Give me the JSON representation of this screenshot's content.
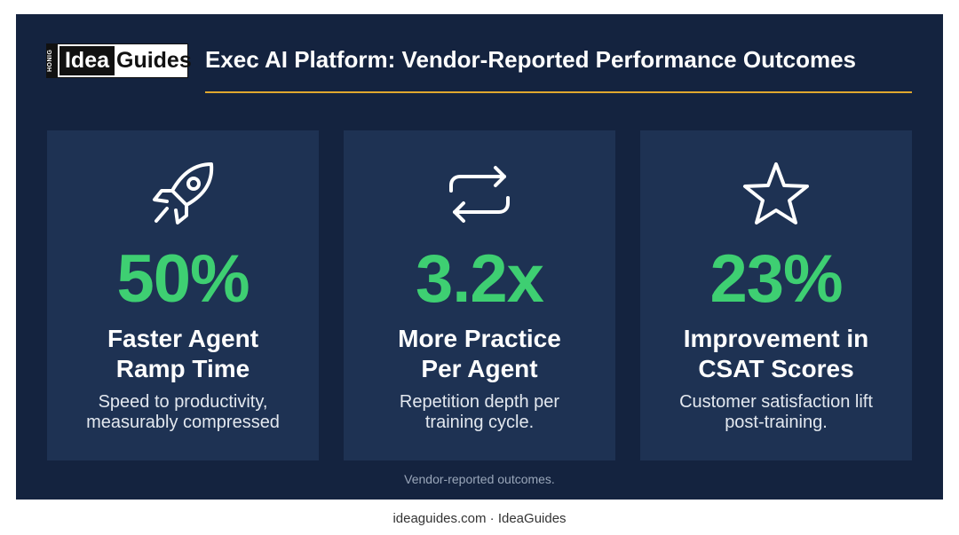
{
  "header": {
    "logo": {
      "top": "HONIG",
      "idea": "Idea",
      "guides": "Guides"
    },
    "title": "Exec AI Platform: Vendor-Reported Performance Outcomes"
  },
  "cards": [
    {
      "stat": "50%",
      "heading": [
        "Faster Agent",
        "Ramp Time"
      ],
      "description": [
        "Speed to productivity,",
        "measurably compressed"
      ]
    },
    {
      "stat": "3.2x",
      "heading": [
        "More Practice",
        "Per Agent"
      ],
      "description": [
        "Repetition depth per",
        "training cycle."
      ]
    },
    {
      "stat": "23%",
      "heading": [
        "Improvement in",
        "CSAT Scores"
      ],
      "description": [
        "Customer satisfaction lift",
        "post-training."
      ]
    }
  ],
  "footnote": "Vendor-reported outcomes.",
  "footer": "ideaguides.com · IdeaGuides"
}
